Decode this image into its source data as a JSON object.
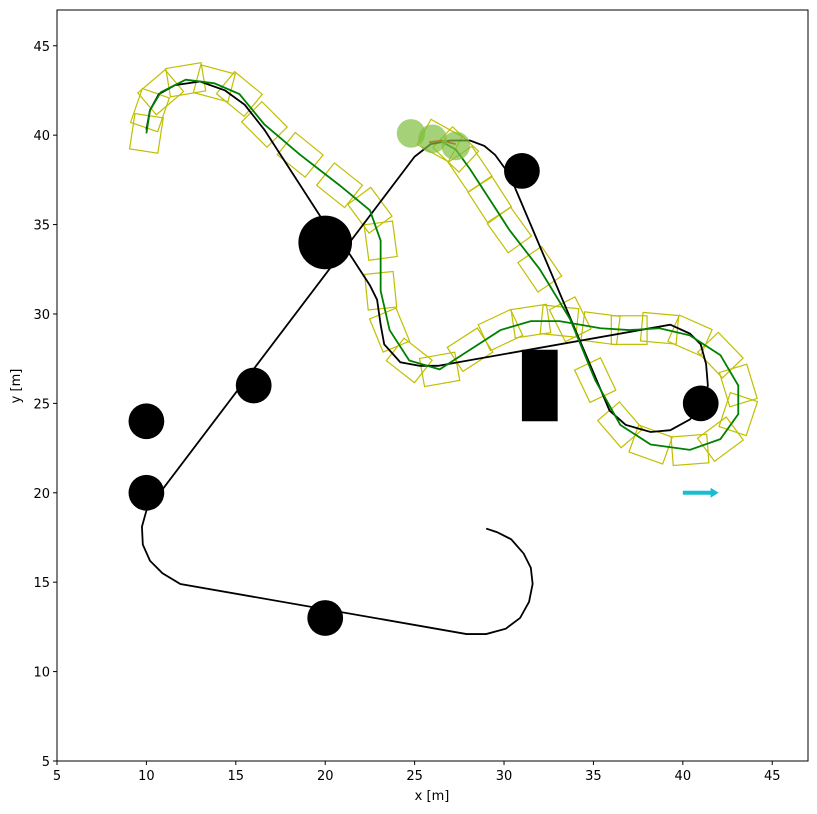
{
  "chart_data": {
    "type": "line",
    "xlabel": "x [m]",
    "ylabel": "y [m]",
    "xlim": [
      5,
      47
    ],
    "ylim": [
      5,
      47
    ],
    "xticks": [
      5,
      10,
      15,
      20,
      25,
      30,
      35,
      40,
      45
    ],
    "yticks": [
      5,
      10,
      15,
      20,
      25,
      30,
      35,
      40,
      45
    ],
    "series": [
      {
        "color": "#000000",
        "x": [
          29,
          29.6,
          30.4,
          31.1,
          31.5,
          31.6,
          31.4,
          30.9,
          30.1,
          29,
          27.9,
          11.9,
          10.9,
          10.2,
          9.8,
          9.75,
          10,
          25.0,
          25.9,
          27,
          28.1,
          28.9,
          29.5,
          30.3,
          35.9,
          36.8,
          38.2,
          39.3,
          40.4,
          41.1,
          41.4,
          41.3,
          41.0,
          40.4,
          39.3,
          26.3,
          25.3,
          24.2,
          23.3,
          23.1,
          22.9,
          22.5,
          21.4,
          19.7,
          16.6,
          15.5,
          14.4,
          13,
          11.6,
          10.7,
          10.2,
          10
        ],
        "values": [
          18,
          17.8,
          17.4,
          16.6,
          15.8,
          14.9,
          13.9,
          13.0,
          12.4,
          12.1,
          12.1,
          14.9,
          15.5,
          16.2,
          17.1,
          18.1,
          19.0,
          38.8,
          39.5,
          39.7,
          39.7,
          39.4,
          38.9,
          37.8,
          24.6,
          23.8,
          23.4,
          23.5,
          24.1,
          24.9,
          26.0,
          27.2,
          28.3,
          28.9,
          29.4,
          27.1,
          27.1,
          27.3,
          28.3,
          29.4,
          30.8,
          31.6,
          33.3,
          35.5,
          40.3,
          41.7,
          42.5,
          43,
          42.8,
          42.3,
          41.4,
          40.3
        ]
      },
      {
        "color": "#008000",
        "x": [
          10,
          10.2,
          10.8,
          12.2,
          13.8,
          15.2,
          16.6,
          18.6,
          20.8,
          22.5,
          23.1,
          23.1,
          23.6,
          24.7,
          26.4,
          28.1,
          29.8,
          31.5,
          33.1,
          35.4,
          37,
          38.7,
          40.4,
          42.1,
          43.1,
          43.1,
          42.1,
          40.4,
          38.2,
          36.5,
          35.1,
          33.7,
          32,
          30.3,
          29.2,
          28.1,
          27.3,
          26.4
        ],
        "values": [
          40.1,
          41.4,
          42.4,
          43.1,
          42.9,
          42.3,
          40.6,
          38.9,
          37.2,
          35.8,
          34.1,
          31.3,
          29.1,
          27.4,
          26.9,
          28.0,
          29.1,
          29.6,
          29.6,
          29.2,
          29.1,
          29.2,
          28.8,
          27.7,
          26.0,
          24.4,
          23.0,
          22.4,
          22.7,
          23.8,
          26.3,
          29.7,
          32.5,
          34.7,
          36.4,
          38.1,
          39.2,
          39.7
        ]
      },
      {
        "color": "#ff0000",
        "x": [
          25.8,
          26.5,
          27.3
        ],
        "values": [
          39.6,
          39.7,
          39.5
        ]
      }
    ],
    "footprint": {
      "color": "#bfbf00",
      "length": 2.0,
      "width": 1.6
    },
    "vehicle": {
      "color": "#7fbf3f",
      "x": [
        24.8,
        26.0,
        27.3
      ],
      "y": [
        40.1,
        39.8,
        39.4
      ],
      "r": [
        0.8,
        0.8,
        0.8
      ]
    },
    "obstacles": {
      "color": "#000000",
      "x": [
        31,
        20,
        16,
        10,
        10,
        20,
        41
      ],
      "y": [
        38,
        34,
        26,
        24,
        20,
        13,
        25
      ],
      "r": [
        1,
        1.5,
        1,
        1,
        1,
        1,
        1
      ]
    },
    "box": {
      "color": "#000000",
      "x": 31,
      "y": 24,
      "width": 2,
      "height": 4
    },
    "arrow": {
      "color": "#17becf",
      "x": 40,
      "y": 20,
      "dx": 2,
      "dy": 0
    }
  }
}
